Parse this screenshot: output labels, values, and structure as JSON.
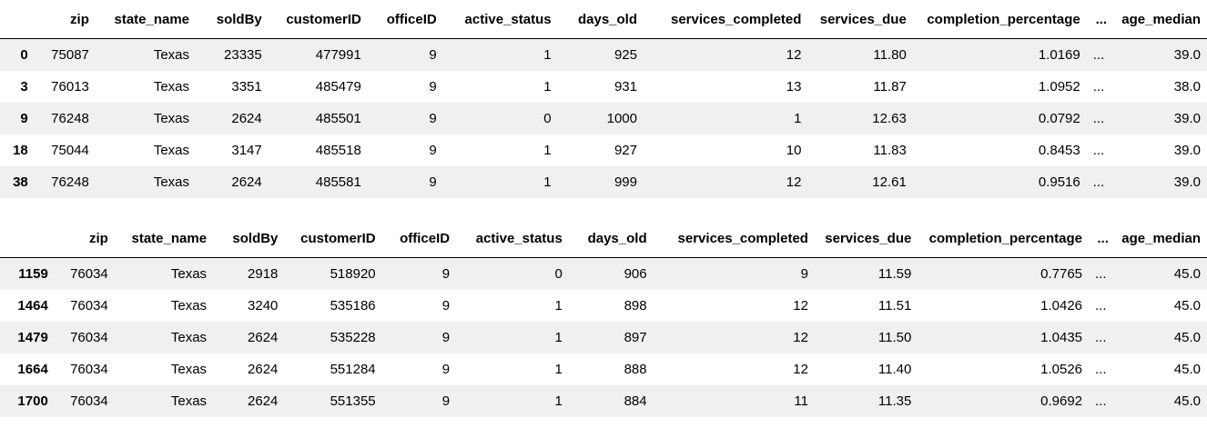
{
  "tables": [
    {
      "columns": [
        "",
        "zip",
        "state_name",
        "soldBy",
        "customerID",
        "officeID",
        "active_status",
        "days_old",
        "services_completed",
        "services_due",
        "completion_percentage",
        "...",
        "age_median"
      ],
      "rows": [
        [
          "0",
          "75087",
          "Texas",
          "23335",
          "477991",
          "9",
          "1",
          "925",
          "12",
          "11.80",
          "1.0169",
          "...",
          "39.0"
        ],
        [
          "3",
          "76013",
          "Texas",
          "3351",
          "485479",
          "9",
          "1",
          "931",
          "13",
          "11.87",
          "1.0952",
          "...",
          "38.0"
        ],
        [
          "9",
          "76248",
          "Texas",
          "2624",
          "485501",
          "9",
          "0",
          "1000",
          "1",
          "12.63",
          "0.0792",
          "...",
          "39.0"
        ],
        [
          "18",
          "75044",
          "Texas",
          "3147",
          "485518",
          "9",
          "1",
          "927",
          "10",
          "11.83",
          "0.8453",
          "...",
          "39.0"
        ],
        [
          "38",
          "76248",
          "Texas",
          "2624",
          "485581",
          "9",
          "1",
          "999",
          "12",
          "12.61",
          "0.9516",
          "...",
          "39.0"
        ]
      ]
    },
    {
      "columns": [
        "",
        "zip",
        "state_name",
        "soldBy",
        "customerID",
        "officeID",
        "active_status",
        "days_old",
        "services_completed",
        "services_due",
        "completion_percentage",
        "...",
        "age_median"
      ],
      "rows": [
        [
          "1159",
          "76034",
          "Texas",
          "2918",
          "518920",
          "9",
          "0",
          "906",
          "9",
          "11.59",
          "0.7765",
          "...",
          "45.0"
        ],
        [
          "1464",
          "76034",
          "Texas",
          "3240",
          "535186",
          "9",
          "1",
          "898",
          "12",
          "11.51",
          "1.0426",
          "...",
          "45.0"
        ],
        [
          "1479",
          "76034",
          "Texas",
          "2624",
          "535228",
          "9",
          "1",
          "897",
          "12",
          "11.50",
          "1.0435",
          "...",
          "45.0"
        ],
        [
          "1664",
          "76034",
          "Texas",
          "2624",
          "551284",
          "9",
          "1",
          "888",
          "12",
          "11.40",
          "1.0526",
          "...",
          "45.0"
        ],
        [
          "1700",
          "76034",
          "Texas",
          "2624",
          "551355",
          "9",
          "1",
          "884",
          "11",
          "11.35",
          "0.9692",
          "...",
          "45.0"
        ]
      ]
    }
  ]
}
